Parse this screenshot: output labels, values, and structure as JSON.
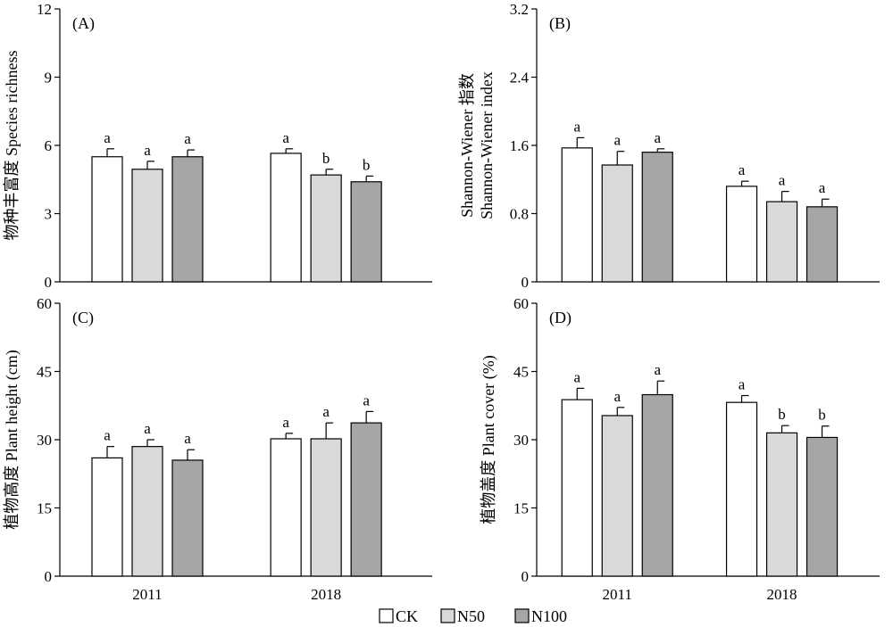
{
  "legend": [
    {
      "name": "CK",
      "color": "#ffffff"
    },
    {
      "name": "N50",
      "color": "#d9d9d9"
    },
    {
      "name": "N100",
      "color": "#a6a6a6"
    }
  ],
  "chart_data": [
    {
      "type": "bar",
      "panel_label": "(A)",
      "ylabel_lines": [
        "物种丰富度 Species richness"
      ],
      "categories": [
        "2011",
        "2018"
      ],
      "show_xticks": false,
      "ylim": [
        0,
        12
      ],
      "yticks": [
        0,
        3,
        6,
        9,
        12
      ],
      "ytick_labels": [
        "0",
        "3",
        "6",
        "9",
        "12"
      ],
      "series": [
        {
          "name": "CK",
          "values": [
            5.5,
            5.65
          ],
          "errors": [
            0.35,
            0.2
          ],
          "letters": [
            "a",
            "a"
          ]
        },
        {
          "name": "N50",
          "values": [
            4.95,
            4.7
          ],
          "errors": [
            0.35,
            0.25
          ],
          "letters": [
            "a",
            "b"
          ]
        },
        {
          "name": "N100",
          "values": [
            5.5,
            4.4
          ],
          "errors": [
            0.3,
            0.25
          ],
          "letters": [
            "a",
            "b"
          ]
        }
      ]
    },
    {
      "type": "bar",
      "panel_label": "(B)",
      "ylabel_lines": [
        "Shannon-Wiener 指数",
        "Shannon-Wiener index"
      ],
      "categories": [
        "2011",
        "2018"
      ],
      "show_xticks": false,
      "ylim": [
        0,
        3.2
      ],
      "yticks": [
        0,
        0.8,
        1.6,
        2.4,
        3.2
      ],
      "ytick_labels": [
        "0",
        "0.8",
        "1.6",
        "2.4",
        "3.2"
      ],
      "series": [
        {
          "name": "CK",
          "values": [
            1.57,
            1.12
          ],
          "errors": [
            0.12,
            0.06
          ],
          "letters": [
            "a",
            "a"
          ]
        },
        {
          "name": "N50",
          "values": [
            1.37,
            0.94
          ],
          "errors": [
            0.16,
            0.12
          ],
          "letters": [
            "a",
            "a"
          ]
        },
        {
          "name": "N100",
          "values": [
            1.52,
            0.88
          ],
          "errors": [
            0.04,
            0.09
          ],
          "letters": [
            "a",
            "a"
          ]
        }
      ]
    },
    {
      "type": "bar",
      "panel_label": "(C)",
      "ylabel_lines": [
        "植物高度 Plant height (cm)"
      ],
      "categories": [
        "2011",
        "2018"
      ],
      "show_xticks": true,
      "ylim": [
        0,
        60
      ],
      "yticks": [
        0,
        15,
        30,
        45,
        60
      ],
      "ytick_labels": [
        "0",
        "15",
        "30",
        "45",
        "60"
      ],
      "series": [
        {
          "name": "CK",
          "values": [
            26.0,
            30.2
          ],
          "errors": [
            2.5,
            1.2
          ],
          "letters": [
            "a",
            "a"
          ]
        },
        {
          "name": "N50",
          "values": [
            28.5,
            30.2
          ],
          "errors": [
            1.5,
            3.5
          ],
          "letters": [
            "a",
            "a"
          ]
        },
        {
          "name": "N100",
          "values": [
            25.5,
            33.7
          ],
          "errors": [
            2.3,
            2.5
          ],
          "letters": [
            "a",
            "a"
          ]
        }
      ]
    },
    {
      "type": "bar",
      "panel_label": "(D)",
      "ylabel_lines": [
        "植物盖度 Plant cover (%)"
      ],
      "categories": [
        "2011",
        "2018"
      ],
      "show_xticks": true,
      "ylim": [
        0,
        60
      ],
      "yticks": [
        0,
        15,
        30,
        45,
        60
      ],
      "ytick_labels": [
        "0",
        "15",
        "30",
        "45",
        "60"
      ],
      "series": [
        {
          "name": "CK",
          "values": [
            38.8,
            38.2
          ],
          "errors": [
            2.5,
            1.5
          ],
          "letters": [
            "a",
            "a"
          ]
        },
        {
          "name": "N50",
          "values": [
            35.3,
            31.5
          ],
          "errors": [
            1.8,
            1.6
          ],
          "letters": [
            "a",
            "b"
          ]
        },
        {
          "name": "N100",
          "values": [
            39.9,
            30.5
          ],
          "errors": [
            3.0,
            2.5
          ],
          "letters": [
            "a",
            "b"
          ]
        }
      ]
    }
  ]
}
